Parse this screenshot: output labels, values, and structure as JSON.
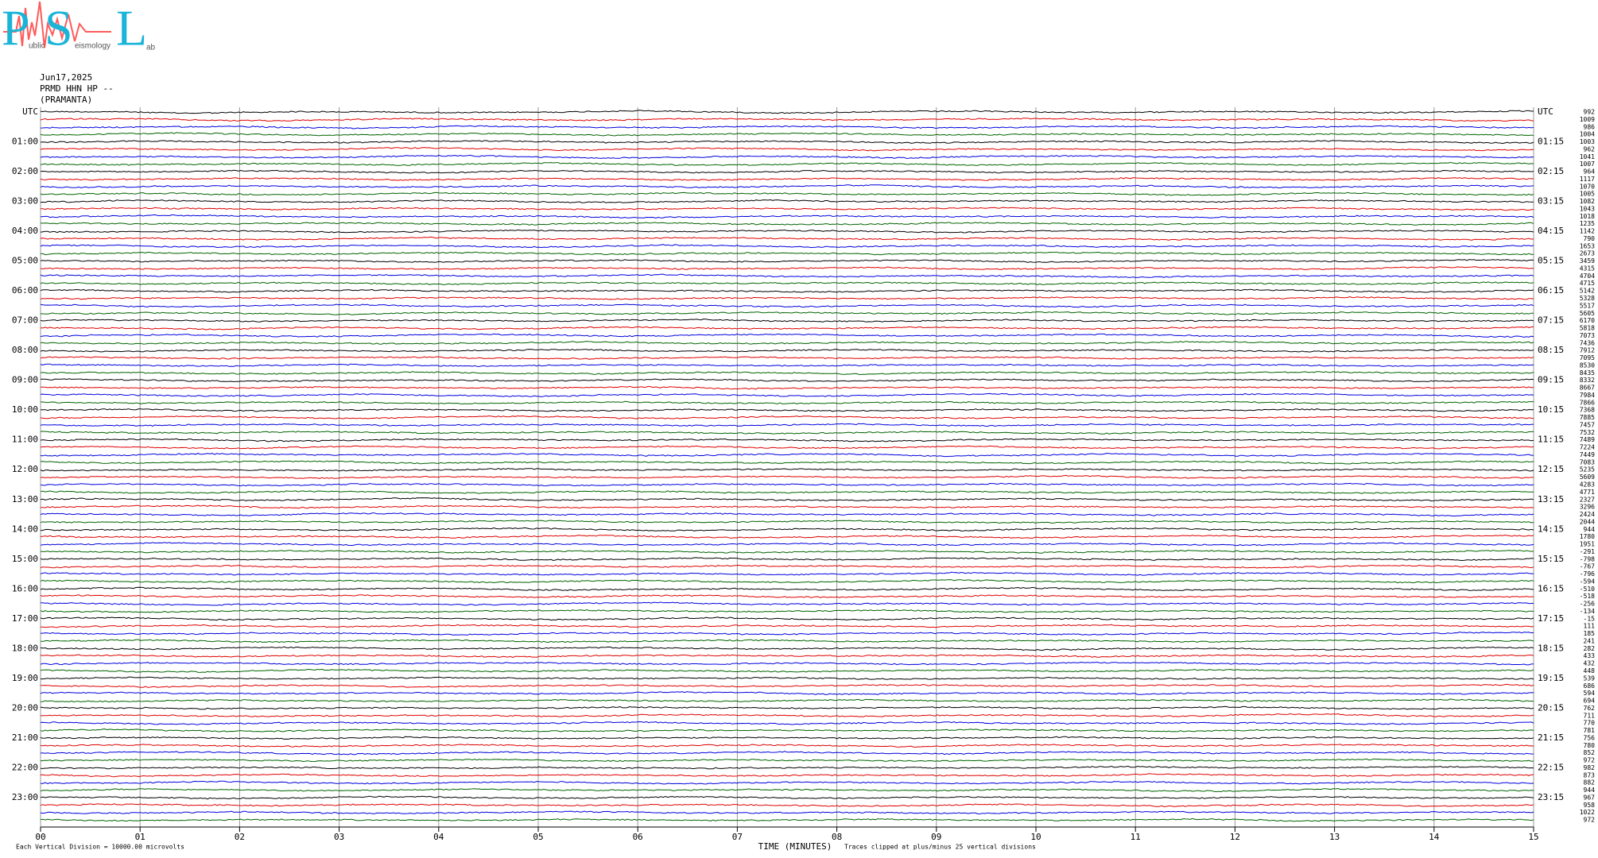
{
  "logo": {
    "letters": [
      "P",
      "S",
      "L"
    ],
    "words": [
      "ublic",
      "eismology",
      "ab"
    ]
  },
  "header": {
    "date": "Jun17,2025",
    "station": "PRMD HHN HP --",
    "name": "(PRAMANTA)"
  },
  "chart_data": {
    "type": "helicorder",
    "left_labels": [
      "UTC",
      "01:00",
      "02:00",
      "03:00",
      "04:00",
      "05:00",
      "06:00",
      "07:00",
      "08:00",
      "09:00",
      "10:00",
      "11:00",
      "12:00",
      "13:00",
      "14:00",
      "15:00",
      "16:00",
      "17:00",
      "18:00",
      "19:00",
      "20:00",
      "21:00",
      "22:00",
      "23:00"
    ],
    "right_labels": [
      "UTC",
      "01:15",
      "02:15",
      "03:15",
      "04:15",
      "05:15",
      "06:15",
      "07:15",
      "08:15",
      "09:15",
      "10:15",
      "11:15",
      "12:15",
      "13:15",
      "14:15",
      "15:15",
      "16:15",
      "17:15",
      "18:15",
      "19:15",
      "20:15",
      "21:15",
      "22:15",
      "23:15"
    ],
    "row_offsets": [
      992,
      1009,
      986,
      1004,
      1003,
      962,
      1041,
      1007,
      964,
      1117,
      1070,
      1005,
      1082,
      1043,
      1018,
      1235,
      1142,
      790,
      1653,
      2673,
      3459,
      4315,
      4704,
      4715,
      5142,
      5328,
      5517,
      5605,
      6170,
      5818,
      7073,
      7436,
      7912,
      7095,
      8530,
      8435,
      8332,
      8667,
      7984,
      7866,
      7368,
      7885,
      7457,
      7532,
      7489,
      7224,
      7449,
      7083,
      5235,
      5609,
      4283,
      4771,
      2327,
      3296,
      2424,
      2044,
      944,
      1780,
      1951,
      -291,
      -798,
      -767,
      -796,
      -594,
      -510,
      -518,
      -256,
      -134,
      -15,
      111,
      185,
      241,
      282,
      433,
      432,
      448,
      539,
      686,
      594,
      694,
      762,
      711,
      770,
      781,
      756,
      780,
      852,
      972,
      982,
      873,
      882,
      944,
      967,
      958,
      1022,
      972
    ],
    "colors": [
      "#000000",
      "#e00000",
      "#0000e0",
      "#006400"
    ],
    "xlim": [
      0,
      15
    ],
    "xticks": [
      {
        "value": 0,
        "label": "00"
      },
      {
        "value": 1,
        "label": "01"
      },
      {
        "value": 2,
        "label": "02"
      },
      {
        "value": 3,
        "label": "03"
      },
      {
        "value": 4,
        "label": "04"
      },
      {
        "value": 5,
        "label": "05"
      },
      {
        "value": 6,
        "label": "06"
      },
      {
        "value": 7,
        "label": "07"
      },
      {
        "value": 8,
        "label": "08"
      },
      {
        "value": 9,
        "label": "09"
      },
      {
        "value": 10,
        "label": "10"
      },
      {
        "value": 11,
        "label": "11"
      },
      {
        "value": 12,
        "label": "12"
      },
      {
        "value": 13,
        "label": "13"
      },
      {
        "value": 14,
        "label": "14"
      },
      {
        "value": 15,
        "label": "15"
      }
    ],
    "xlabel": "TIME (MINUTES)",
    "scale_note": "Each Vertical Division = 10000.00 microvolts",
    "clip_note": "Traces clipped at plus/minus 25 vertical divisions",
    "grid": true
  }
}
